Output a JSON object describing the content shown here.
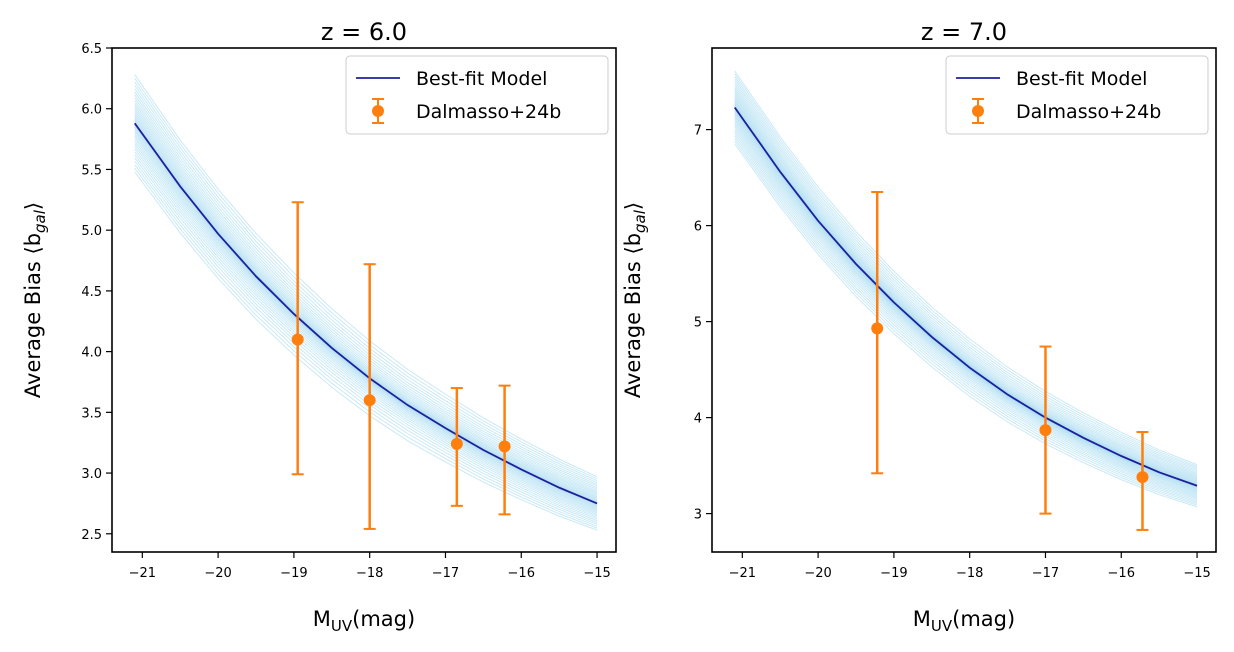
{
  "chart_data": [
    {
      "type": "line",
      "title": "z = 6.0",
      "xlabel_main": "M",
      "xlabel_sub": "UV",
      "xlabel_unit": "(mag)",
      "ylabel": "Average Bias ⟨b",
      "ylabel_sub": "gal",
      "ylabel_end": "⟩",
      "xlim": [
        -21.4,
        -14.75
      ],
      "ylim": [
        2.35,
        6.5
      ],
      "xticks": [
        -21,
        -20,
        -19,
        -18,
        -17,
        -16,
        -15
      ],
      "xtick_labels": [
        "−21",
        "−20",
        "−19",
        "−18",
        "−17",
        "−16",
        "−15"
      ],
      "yticks": [
        2.5,
        3.0,
        3.5,
        4.0,
        4.5,
        5.0,
        5.5,
        6.0,
        6.5
      ],
      "ytick_labels": [
        "2.5",
        "3.0",
        "3.5",
        "4.0",
        "4.5",
        "5.0",
        "5.5",
        "6.0",
        "6.5"
      ],
      "best_fit": {
        "name": "Best-fit Model",
        "color": "#1f1f9e",
        "x": [
          -21.1,
          -20.5,
          -20.0,
          -19.5,
          -19.0,
          -18.5,
          -18.0,
          -17.5,
          -17.0,
          -16.5,
          -16.0,
          -15.5,
          -15.0
        ],
        "y": [
          5.88,
          5.36,
          4.97,
          4.62,
          4.31,
          4.03,
          3.78,
          3.56,
          3.37,
          3.19,
          3.03,
          2.88,
          2.75
        ]
      },
      "posterior_samples": {
        "color": "#87ceeb",
        "count": 40,
        "spread_start": 0.4,
        "spread_end": 0.22
      },
      "observations": {
        "name": "Dalmasso+24b",
        "color": "#ff7f0e",
        "x": [
          -18.95,
          -18.0,
          -16.85,
          -16.22
        ],
        "y": [
          4.1,
          3.6,
          3.24,
          3.22
        ],
        "yerr_low": [
          1.11,
          1.06,
          0.51,
          0.56
        ],
        "yerr_high": [
          1.13,
          1.12,
          0.46,
          0.5
        ]
      },
      "legend_position": "upper-right"
    },
    {
      "type": "line",
      "title": "z = 7.0",
      "xlabel_main": "M",
      "xlabel_sub": "UV",
      "xlabel_unit": "(mag)",
      "ylabel": "Average Bias ⟨b",
      "ylabel_sub": "gal",
      "ylabel_end": "⟩",
      "xlim": [
        -21.4,
        -14.75
      ],
      "ylim": [
        2.6,
        7.85
      ],
      "xticks": [
        -21,
        -20,
        -19,
        -18,
        -17,
        -16,
        -15
      ],
      "xtick_labels": [
        "−21",
        "−20",
        "−19",
        "−18",
        "−17",
        "−16",
        "−15"
      ],
      "yticks": [
        3,
        4,
        5,
        6,
        7
      ],
      "ytick_labels": [
        "3",
        "4",
        "5",
        "6",
        "7"
      ],
      "best_fit": {
        "name": "Best-fit Model",
        "color": "#1f1f9e",
        "x": [
          -21.1,
          -20.5,
          -20.0,
          -19.5,
          -19.0,
          -18.5,
          -18.0,
          -17.5,
          -17.0,
          -16.5,
          -16.0,
          -15.5,
          -15.0
        ],
        "y": [
          7.23,
          6.56,
          6.05,
          5.6,
          5.2,
          4.84,
          4.52,
          4.24,
          4.0,
          3.79,
          3.6,
          3.43,
          3.29
        ]
      },
      "posterior_samples": {
        "color": "#87ceeb",
        "count": 40,
        "spread_start": 0.38,
        "spread_end": 0.22
      },
      "observations": {
        "name": "Dalmasso+24b",
        "color": "#ff7f0e",
        "x": [
          -19.22,
          -17.0,
          -15.72
        ],
        "y": [
          4.93,
          3.87,
          3.38
        ],
        "yerr_low": [
          1.51,
          0.87,
          0.55
        ],
        "yerr_high": [
          1.42,
          0.87,
          0.47
        ]
      },
      "legend_position": "upper-right"
    }
  ]
}
